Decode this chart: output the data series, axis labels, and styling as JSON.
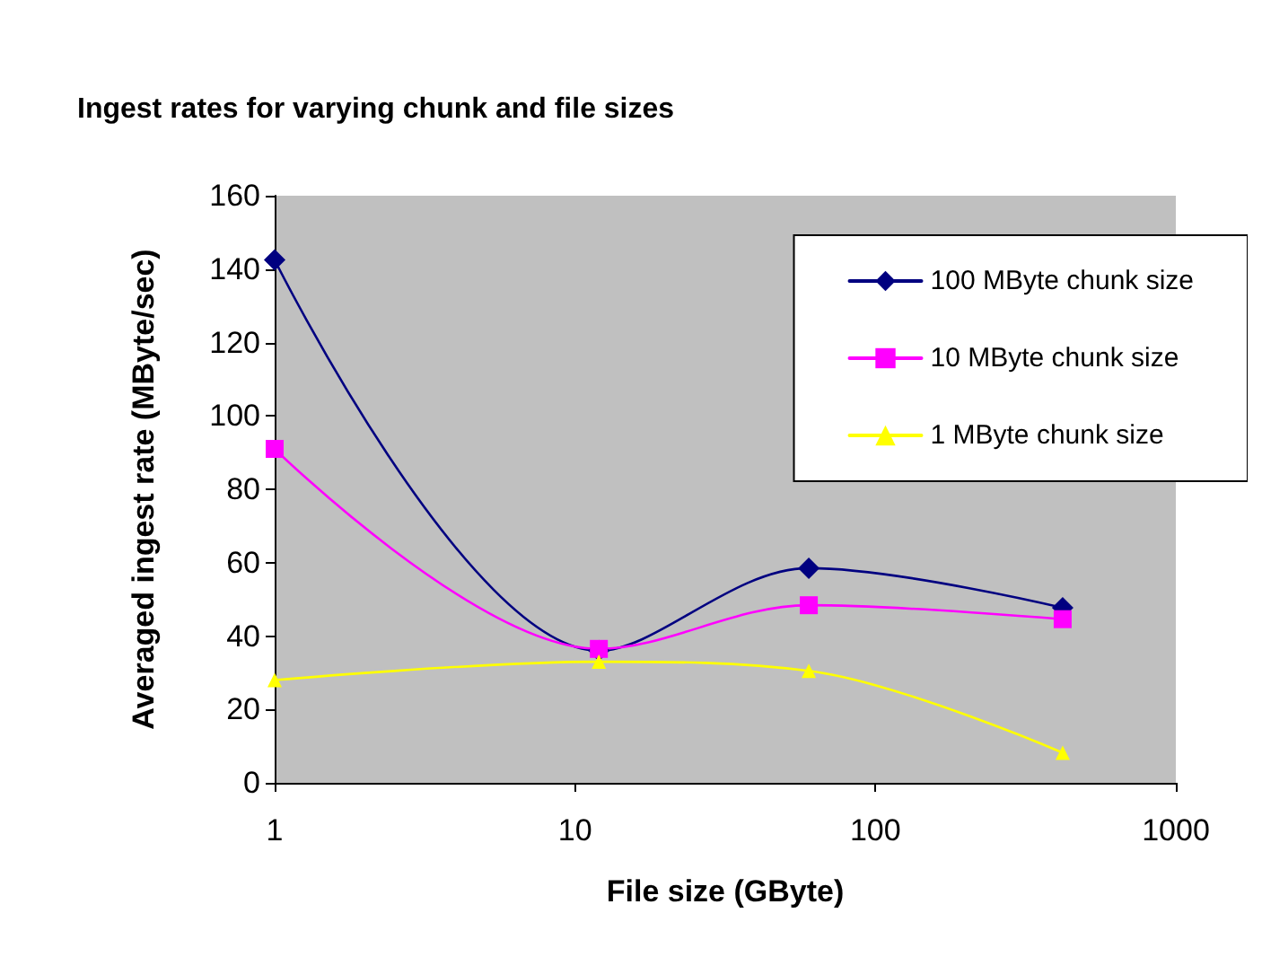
{
  "chart_data": {
    "type": "line",
    "title": "Ingest rates for varying chunk and file sizes",
    "xlabel": "File size (GByte)",
    "ylabel": "Averaged ingest rate (MByte/sec)",
    "x": [
      1,
      12,
      60,
      420
    ],
    "series": [
      {
        "name": "100 MByte chunk size",
        "color": "#000080",
        "marker": "diamond",
        "values": [
          142.5,
          36,
          58.5,
          47.7
        ]
      },
      {
        "name": "10 MByte chunk size",
        "color": "#ff00ff",
        "marker": "square",
        "values": [
          91,
          36.5,
          48.4,
          44.6
        ]
      },
      {
        "name": "1 MByte chunk size",
        "color": "#ffff00",
        "marker": "triangle",
        "values": [
          28,
          33,
          30.5,
          8.2
        ]
      }
    ],
    "log": "x",
    "xlim": [
      1,
      1000
    ],
    "xticks": [
      1,
      10,
      100,
      1000
    ],
    "ylim": [
      0,
      160
    ],
    "yticks": [
      0,
      20,
      40,
      60,
      80,
      100,
      120,
      140,
      160
    ],
    "grid": false,
    "legend": "top right"
  }
}
